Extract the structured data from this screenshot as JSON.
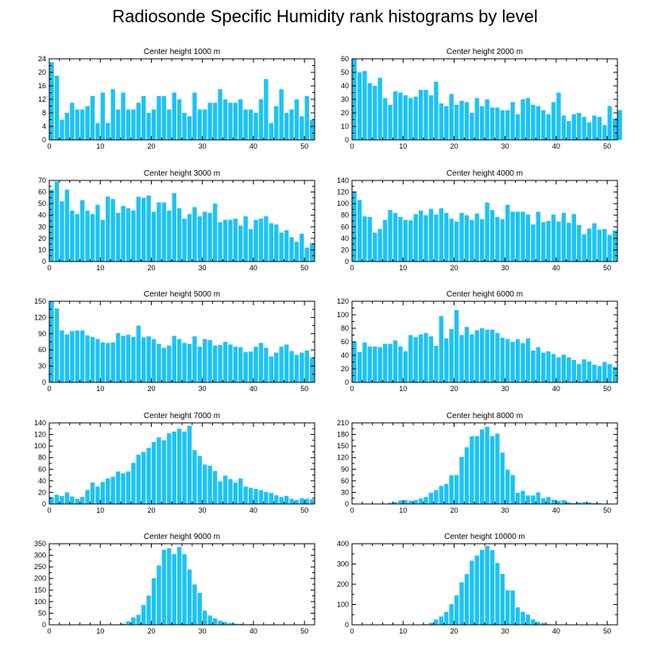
{
  "page": {
    "title": "Radiosonde Specific Humidity rank histograms by level"
  },
  "colors": {
    "bar": "#1cc3f6",
    "axis": "#000000",
    "background": "#ffffff"
  },
  "chart_data": [
    {
      "type": "bar",
      "title": "Center height 1000 m",
      "x_ticks": [
        0,
        10,
        20,
        30,
        40,
        50
      ],
      "xlim": [
        0,
        52
      ],
      "ylim": [
        0,
        24
      ],
      "y_ticks": [
        0,
        4,
        8,
        12,
        16,
        20,
        24
      ],
      "values": [
        23,
        19,
        6,
        8,
        11,
        9,
        9,
        10,
        13,
        5,
        14,
        5,
        15,
        9,
        14,
        9,
        9,
        11,
        13,
        8,
        9,
        13,
        13,
        9,
        14,
        12,
        8,
        7,
        14,
        9,
        9,
        11,
        11,
        15,
        12,
        11,
        11,
        12,
        9,
        9,
        8,
        12,
        18,
        5,
        10,
        15,
        8,
        9,
        12,
        7,
        13,
        6
      ]
    },
    {
      "type": "bar",
      "title": "Center height 2000 m",
      "x_ticks": [
        0,
        10,
        20,
        30,
        40,
        50
      ],
      "xlim": [
        0,
        52
      ],
      "ylim": [
        0,
        60
      ],
      "y_ticks": [
        0,
        10,
        20,
        30,
        40,
        50,
        60
      ],
      "values": [
        60,
        50,
        51,
        42,
        40,
        46,
        31,
        26,
        36,
        35,
        33,
        31,
        32,
        37,
        37,
        33,
        43,
        27,
        25,
        34,
        26,
        29,
        28,
        20,
        31,
        25,
        30,
        24,
        24,
        22,
        22,
        28,
        19,
        30,
        31,
        26,
        25,
        22,
        19,
        28,
        35,
        18,
        14,
        19,
        20,
        17,
        13,
        18,
        17,
        11,
        25,
        16,
        22
      ]
    },
    {
      "type": "bar",
      "title": "Center height 3000 m",
      "x_ticks": [
        0,
        10,
        20,
        30,
        40,
        50
      ],
      "xlim": [
        0,
        52
      ],
      "ylim": [
        0,
        70
      ],
      "y_ticks": [
        0,
        10,
        20,
        30,
        40,
        50,
        60,
        70
      ],
      "values": [
        62,
        69,
        52,
        62,
        44,
        41,
        53,
        44,
        41,
        49,
        36,
        56,
        54,
        42,
        48,
        46,
        44,
        56,
        55,
        57,
        43,
        51,
        51,
        44,
        59,
        46,
        37,
        41,
        47,
        39,
        43,
        42,
        50,
        34,
        36,
        36,
        37,
        31,
        39,
        28,
        36,
        37,
        39,
        33,
        32,
        25,
        27,
        21,
        17,
        24,
        12,
        16
      ]
    },
    {
      "type": "bar",
      "title": "Center height 4000 m",
      "x_ticks": [
        0,
        10,
        20,
        30,
        40,
        50
      ],
      "xlim": [
        0,
        52
      ],
      "ylim": [
        0,
        140
      ],
      "y_ticks": [
        0,
        20,
        40,
        60,
        80,
        100,
        120,
        140
      ],
      "values": [
        121,
        106,
        78,
        77,
        50,
        56,
        72,
        89,
        84,
        77,
        72,
        71,
        82,
        88,
        80,
        91,
        81,
        92,
        84,
        74,
        69,
        84,
        80,
        72,
        83,
        73,
        102,
        89,
        77,
        73,
        98,
        86,
        86,
        86,
        81,
        64,
        86,
        68,
        70,
        81,
        69,
        84,
        67,
        82,
        63,
        47,
        57,
        66,
        55,
        56,
        46,
        54
      ]
    },
    {
      "type": "bar",
      "title": "Center height 5000 m",
      "x_ticks": [
        0,
        10,
        20,
        30,
        40,
        50
      ],
      "xlim": [
        0,
        52
      ],
      "ylim": [
        0,
        150
      ],
      "y_ticks": [
        0,
        30,
        60,
        90,
        120,
        150
      ],
      "values": [
        150,
        137,
        96,
        89,
        95,
        96,
        96,
        87,
        84,
        80,
        74,
        73,
        74,
        91,
        86,
        88,
        84,
        105,
        83,
        85,
        80,
        71,
        64,
        68,
        86,
        80,
        73,
        71,
        85,
        66,
        80,
        78,
        68,
        69,
        75,
        70,
        66,
        65,
        56,
        57,
        66,
        73,
        64,
        48,
        55,
        66,
        70,
        58,
        51,
        55,
        59,
        46
      ]
    },
    {
      "type": "bar",
      "title": "Center height 6000 m",
      "x_ticks": [
        0,
        10,
        20,
        30,
        40,
        50
      ],
      "xlim": [
        0,
        52
      ],
      "ylim": [
        0,
        120
      ],
      "y_ticks": [
        0,
        20,
        40,
        60,
        80,
        100,
        120
      ],
      "values": [
        60,
        45,
        59,
        53,
        53,
        52,
        57,
        57,
        62,
        53,
        46,
        70,
        67,
        71,
        73,
        68,
        54,
        98,
        65,
        79,
        107,
        70,
        82,
        71,
        77,
        80,
        78,
        78,
        73,
        66,
        64,
        60,
        64,
        58,
        65,
        47,
        52,
        44,
        46,
        42,
        37,
        41,
        37,
        33,
        27,
        34,
        31,
        26,
        24,
        30,
        27,
        23
      ]
    },
    {
      "type": "bar",
      "title": "Center height 7000 m",
      "x_ticks": [
        0,
        10,
        20,
        30,
        40,
        50
      ],
      "xlim": [
        0,
        52
      ],
      "ylim": [
        0,
        140
      ],
      "y_ticks": [
        0,
        20,
        40,
        60,
        80,
        100,
        120,
        140
      ],
      "values": [
        12,
        16,
        14,
        20,
        13,
        9,
        12,
        24,
        37,
        30,
        38,
        44,
        47,
        56,
        53,
        56,
        71,
        85,
        90,
        97,
        107,
        115,
        110,
        122,
        125,
        130,
        125,
        135,
        93,
        83,
        68,
        66,
        57,
        39,
        49,
        43,
        37,
        44,
        30,
        28,
        26,
        24,
        21,
        19,
        15,
        12,
        14,
        9,
        7,
        10,
        9,
        8
      ]
    },
    {
      "type": "bar",
      "title": "Center height 8000 m",
      "x_ticks": [
        0,
        10,
        20,
        30,
        40,
        50
      ],
      "xlim": [
        0,
        52
      ],
      "ylim": [
        0,
        210
      ],
      "y_ticks": [
        0,
        30,
        60,
        90,
        120,
        150,
        180,
        210
      ],
      "values": [
        0,
        0,
        0,
        0,
        0,
        0,
        1,
        3,
        5,
        9,
        10,
        8,
        10,
        14,
        18,
        29,
        36,
        47,
        52,
        74,
        75,
        122,
        147,
        175,
        176,
        193,
        200,
        176,
        182,
        133,
        89,
        75,
        29,
        34,
        22,
        22,
        30,
        15,
        18,
        11,
        8,
        10,
        4,
        2,
        4,
        5,
        4,
        2,
        2,
        1,
        0,
        0
      ]
    },
    {
      "type": "bar",
      "title": "Center height 9000 m",
      "x_ticks": [
        0,
        10,
        20,
        30,
        40,
        50
      ],
      "xlim": [
        0,
        52
      ],
      "ylim": [
        0,
        350
      ],
      "y_ticks": [
        0,
        50,
        100,
        150,
        200,
        250,
        300,
        350
      ],
      "values": [
        0,
        0,
        0,
        0,
        0,
        0,
        0,
        0,
        0,
        0,
        0,
        0,
        1,
        2,
        5,
        15,
        32,
        43,
        85,
        126,
        201,
        256,
        324,
        330,
        305,
        336,
        305,
        238,
        174,
        138,
        61,
        40,
        28,
        18,
        12,
        8,
        5,
        4,
        2,
        3,
        1,
        1,
        0,
        0,
        0,
        0,
        0,
        0,
        0,
        0,
        0,
        0
      ]
    },
    {
      "type": "bar",
      "title": "Center height 10000 m",
      "x_ticks": [
        0,
        10,
        20,
        30,
        40,
        50
      ],
      "xlim": [
        0,
        52
      ],
      "ylim": [
        0,
        400
      ],
      "y_ticks": [
        0,
        100,
        200,
        300,
        400
      ],
      "values": [
        0,
        0,
        0,
        0,
        0,
        0,
        0,
        0,
        0,
        0,
        0,
        0,
        0,
        1,
        3,
        10,
        26,
        41,
        64,
        102,
        145,
        210,
        250,
        316,
        342,
        370,
        388,
        368,
        305,
        251,
        171,
        169,
        86,
        64,
        50,
        27,
        14,
        9,
        3,
        2,
        1,
        1,
        0,
        0,
        0,
        0,
        0,
        0,
        0,
        0,
        0,
        0
      ]
    }
  ]
}
